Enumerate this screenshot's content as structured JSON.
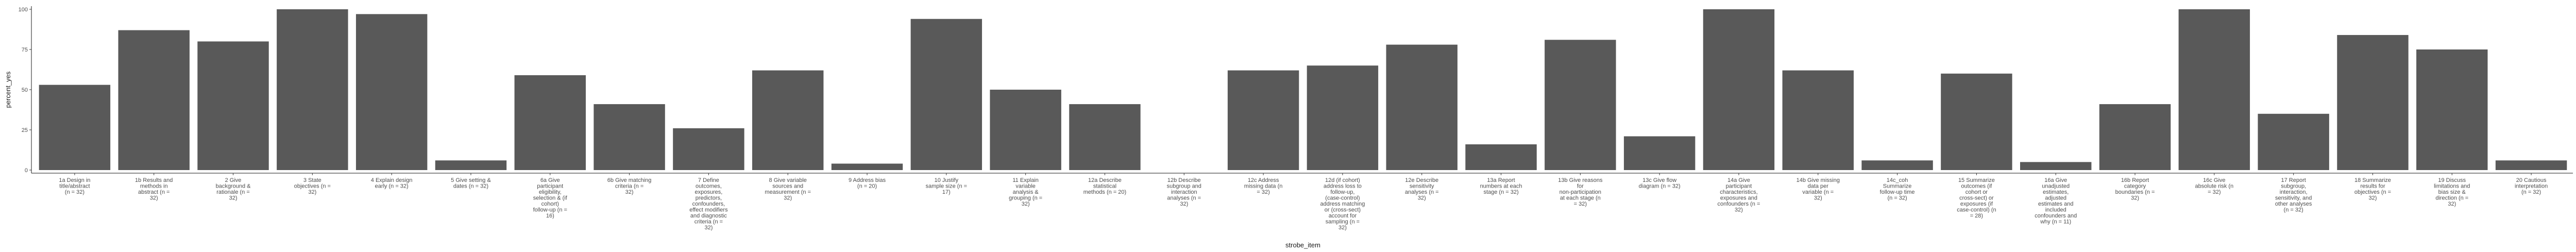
{
  "chart_data": {
    "type": "bar",
    "xlabel": "strobe_item",
    "ylabel": "percent_yes",
    "ylim": [
      0,
      100
    ],
    "yticks": [
      "0",
      "25",
      "50",
      "75",
      "100"
    ],
    "grid": false,
    "bar_color": "#595959",
    "categories": [
      "1a Design in title/abstract (n = 32)",
      "1b Results and methods in abstract (n = 32)",
      "2 Give background & rationale (n = 32)",
      "3 State objectives (n = 32)",
      "4 Explain design early (n = 32)",
      "5 Give setting & dates (n = 32)",
      "6a Give participant eligibility, selection & (if cohort) follow-up (n = 16)",
      "6b Give matching criteria (n = 32)",
      "7 Define outcomes, exposures, predictors, confounders, effect modifiers and diagnostic criteria (n = 32)",
      "8 Give variable sources and measurement (n = 32)",
      "9 Address bias (n = 20)",
      "10 Justify sample size (n = 17)",
      "11 Explain variable analysis & grouping (n = 32)",
      "12a Describe statistical methods (n = 20)",
      "12b Describe subgroup and interaction analyses (n = 32)",
      "12c Address missing data (n = 32)",
      "12d (if cohort) address loss to follow-up, (case-control) address matching or (cross-sect) account for sampling (n = 32)",
      "12e Describe sensitivity analyses (n = 32)",
      "13a Report numbers at each stage (n = 32)",
      "13b Give reasons for non-participation at each stage (n = 32)",
      "13c Give flow diagram (n = 32)",
      "14a Give participant characteristics, exposures and confounders (n = 32)",
      "14b Give missing data per variable (n = 32)",
      "14c_coh Summarize follow-up time (n = 32)",
      "15 Summarize outcomes (if cohort or cross-sect) or exposures (if case-control) (n = 28)",
      "16a Give unadjusted estimates, adjusted estimates and included confounders and why (n = 11)",
      "16b Report category boundaries (n = 32)",
      "16c Give absolute risk (n = 32)",
      "17 Report subgroup, interaction, sensitivity, and other analyses (n = 32)",
      "18 Summarize results for objectives (n = 32)",
      "19 Discuss limitations and bias size & direction (n = 32)",
      "20 Cautious interpretation (n = 32)"
    ],
    "values": [
      53,
      87,
      80,
      100,
      97,
      6,
      59,
      41,
      26,
      62,
      4,
      94,
      50,
      41,
      0,
      62,
      65,
      78,
      16,
      81,
      21,
      100,
      62,
      6,
      60,
      5,
      41,
      100,
      35,
      84,
      75,
      6
    ]
  }
}
